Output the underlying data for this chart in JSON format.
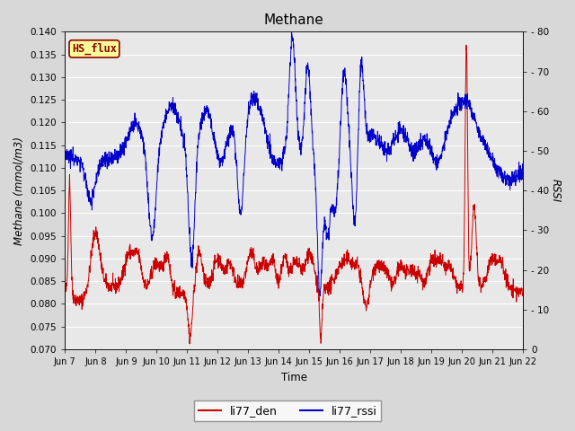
{
  "title": "Methane",
  "ylabel_left": "Methane (mmol/m3)",
  "ylabel_right": "RSSI",
  "xlabel": "Time",
  "ylim_left": [
    0.07,
    0.14
  ],
  "ylim_right": [
    0,
    80
  ],
  "yticks_left": [
    0.07,
    0.075,
    0.08,
    0.085,
    0.09,
    0.095,
    0.1,
    0.105,
    0.11,
    0.115,
    0.12,
    0.125,
    0.13,
    0.135,
    0.14
  ],
  "yticks_right": [
    0,
    10,
    20,
    30,
    40,
    50,
    60,
    70,
    80
  ],
  "xtick_labels": [
    "Jun 7",
    "Jun 8",
    "Jun 9",
    "Jun 10",
    "Jun 11",
    "Jun 12",
    "Jun 13",
    "Jun 14",
    "Jun 15",
    "Jun 16",
    "Jun 17",
    "Jun 18",
    "Jun 19",
    "Jun 20",
    "Jun 21",
    "Jun 22"
  ],
  "color_red": "#cc0000",
  "color_blue": "#0000cc",
  "legend_label_red": "li77_den",
  "legend_label_blue": "li77_rssi",
  "watermark_text": "HS_flux",
  "watermark_color": "#8b0000",
  "watermark_bg": "#ffff99",
  "background_color": "#d8d8d8",
  "axes_bg": "#e8e8e8",
  "grid_color": "#ffffff"
}
